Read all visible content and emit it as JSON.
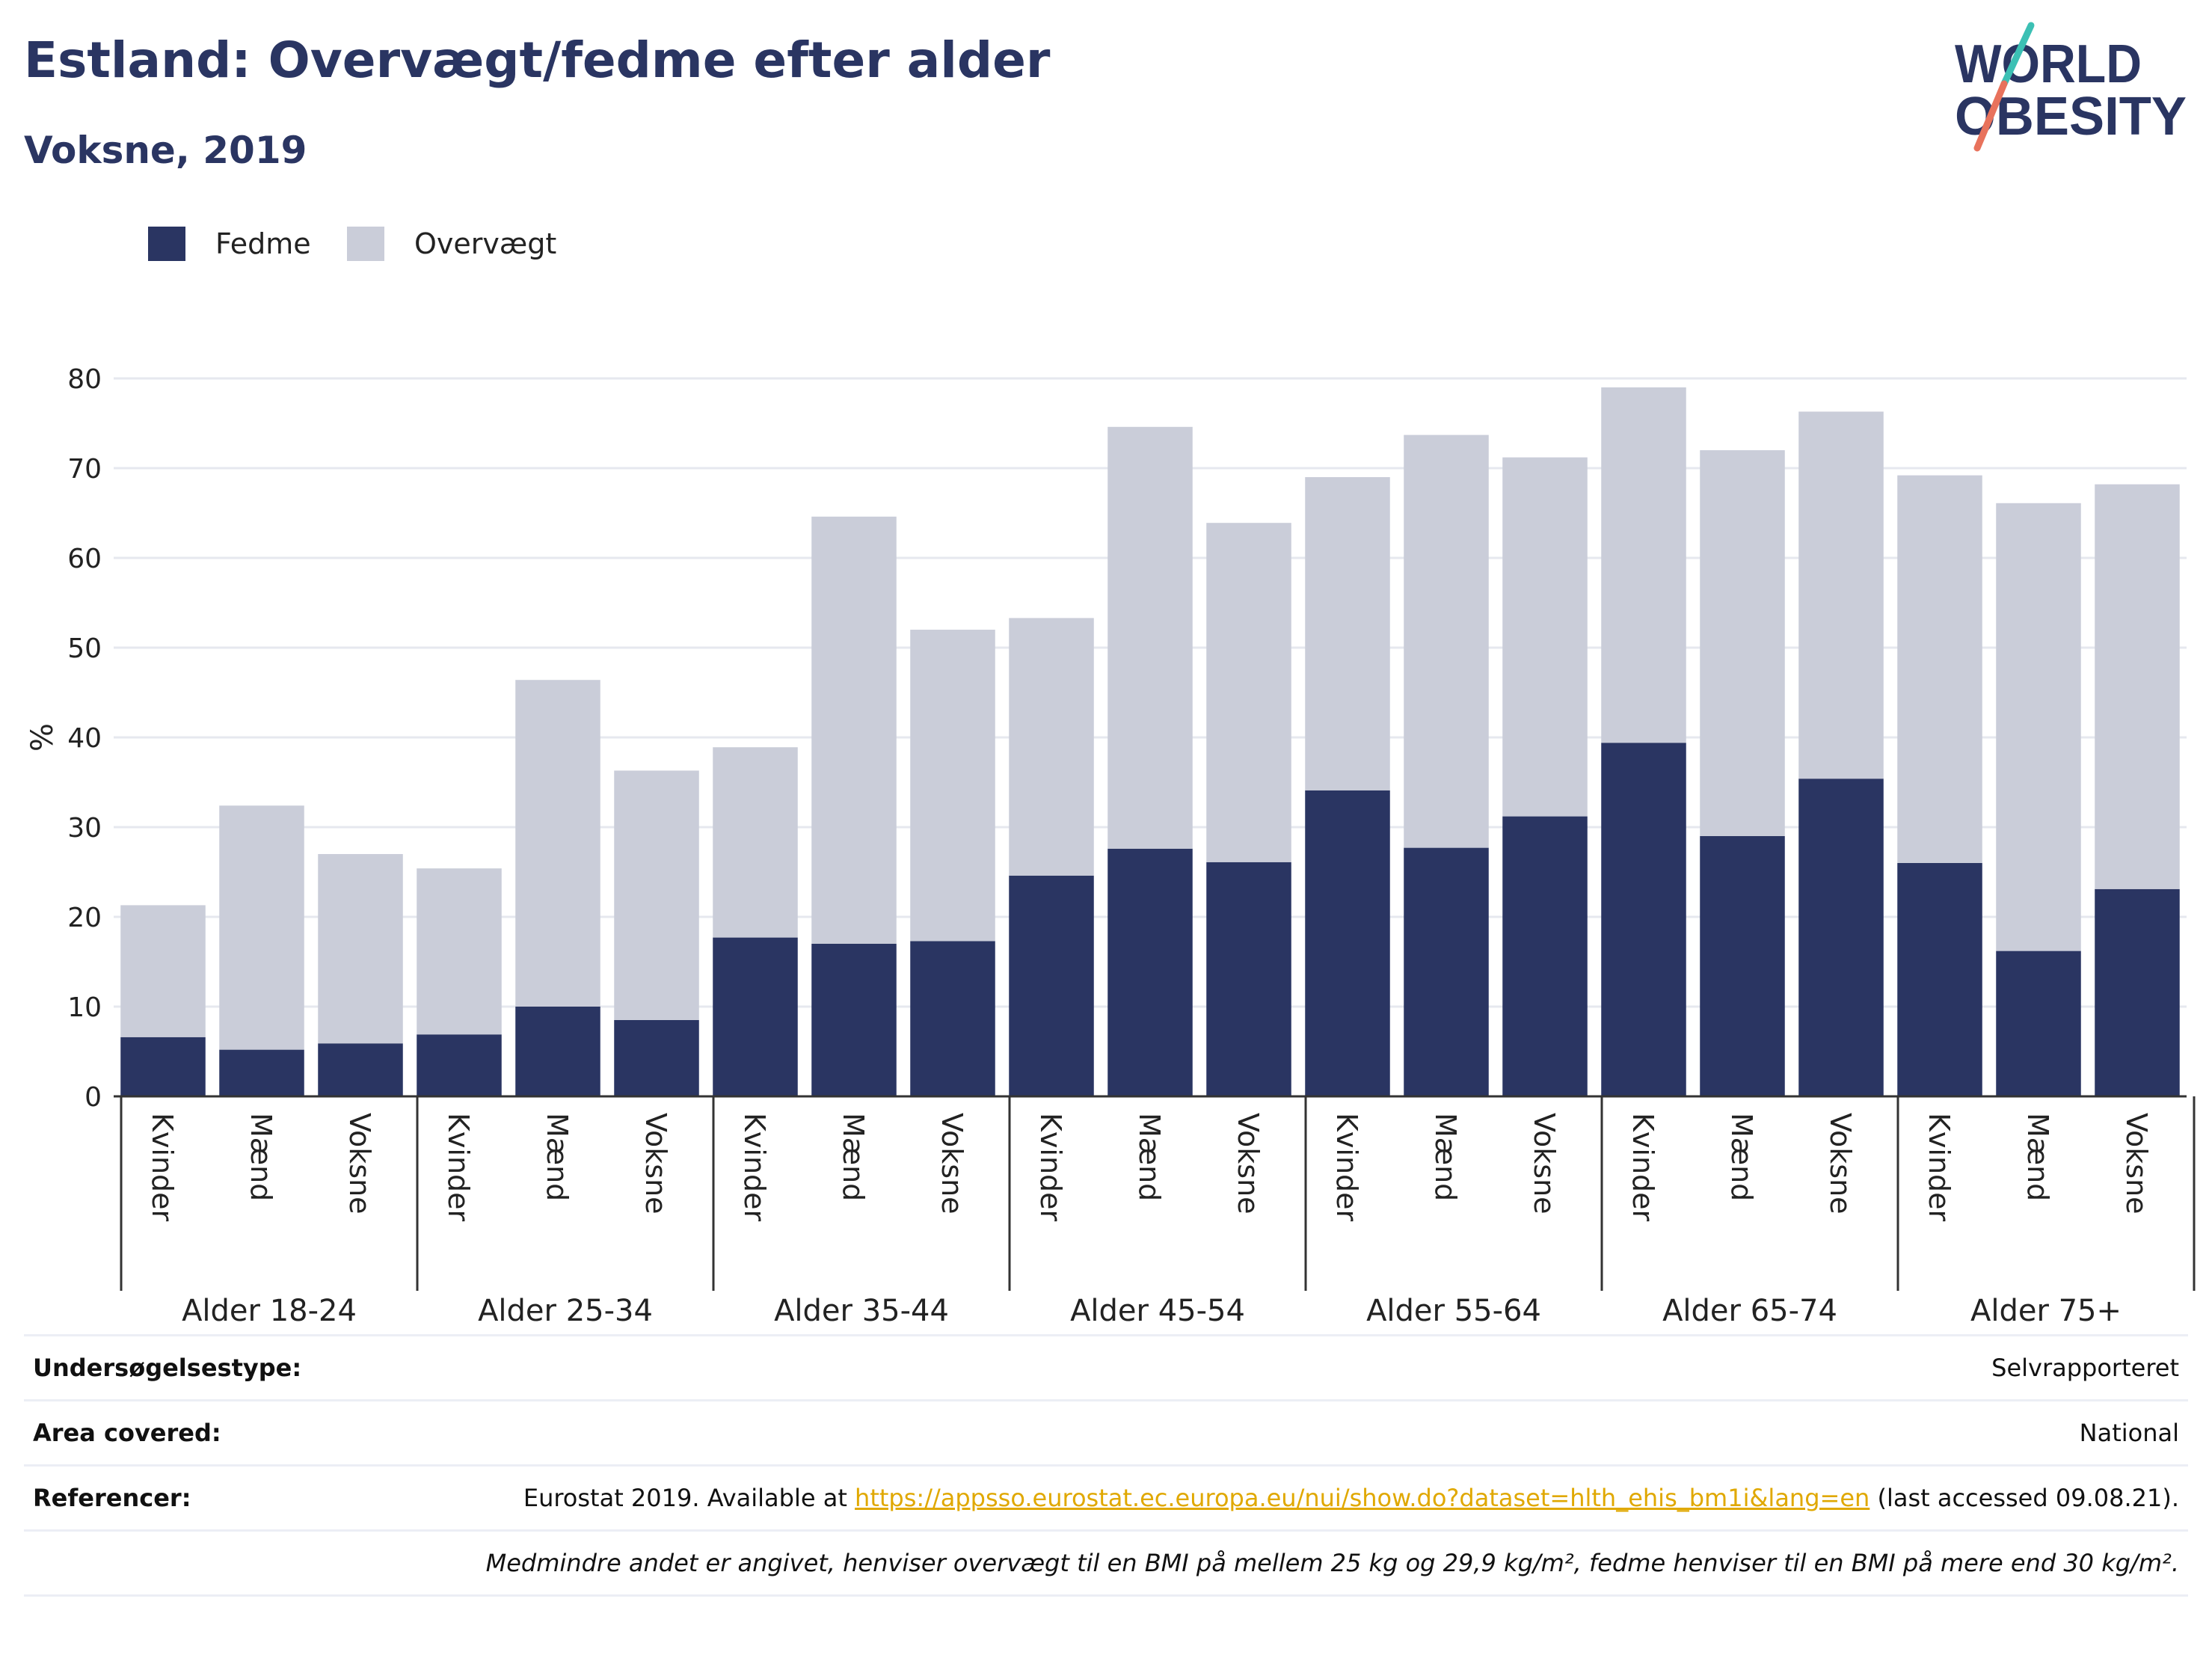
{
  "header": {
    "title": "Estland: Overvægt/fedme efter alder",
    "subtitle": "Voksne, 2019"
  },
  "logo": {
    "line1": "WORLD",
    "line2": "OBESITY",
    "colors": {
      "text": "#2a3562",
      "slash_top": "#3cc0b4",
      "slash_bottom": "#e8725c"
    }
  },
  "legend": [
    {
      "label": "Fedme",
      "color": "#2a3562"
    },
    {
      "label": "Overvægt",
      "color": "#cacdd9"
    }
  ],
  "chart_data": {
    "type": "bar",
    "stacked": true,
    "ylabel": "%",
    "ylim": [
      0,
      80
    ],
    "yticks": [
      0,
      10,
      20,
      30,
      40,
      50,
      60,
      70,
      80
    ],
    "grid": true,
    "groups": [
      "Alder 18-24",
      "Alder 25-34",
      "Alder 35-44",
      "Alder 45-54",
      "Alder 55-64",
      "Alder 65-74",
      "Alder 75+"
    ],
    "subcategories": [
      "Kvinder",
      "Mænd",
      "Voksne"
    ],
    "series": [
      {
        "name": "Fedme",
        "color": "#2a3562",
        "values": [
          6.6,
          5.2,
          5.9,
          6.9,
          10.0,
          8.5,
          17.7,
          17.0,
          17.3,
          24.6,
          27.6,
          26.1,
          34.1,
          27.7,
          31.2,
          39.4,
          29.0,
          35.4,
          26.0,
          16.2,
          23.1
        ]
      },
      {
        "name": "Overvægt",
        "color": "#cacdd9",
        "values": [
          14.7,
          27.2,
          21.1,
          18.5,
          36.4,
          27.8,
          21.2,
          47.6,
          34.7,
          28.7,
          47.0,
          37.8,
          34.9,
          46.0,
          40.0,
          39.6,
          43.0,
          40.9,
          43.2,
          49.9,
          45.1
        ]
      }
    ]
  },
  "info": {
    "survey_type_label": "Undersøgelsestype:",
    "survey_type_value": "Selvrapporteret",
    "area_label": "Area covered:",
    "area_value": "National",
    "references_label": "Referencer:",
    "references_prefix": "Eurostat 2019. Available at ",
    "references_link": "https://appsso.eurostat.ec.europa.eu/nui/show.do?dataset=hlth_ehis_bm1i&lang=en",
    "references_suffix": " (last accessed 09.08.21).",
    "footnote": "Medmindre andet er angivet, henviser overvægt til en BMI på mellem 25 kg og 29,9 kg/m², fedme henviser til en BMI på mere end 30 kg/m²."
  }
}
